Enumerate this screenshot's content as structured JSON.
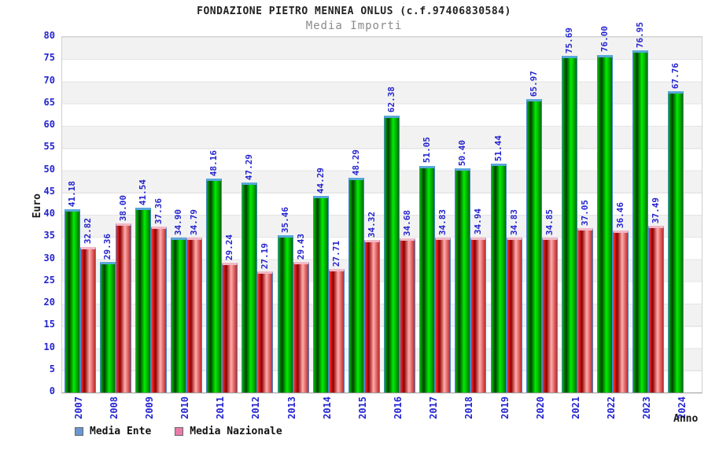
{
  "chart_data": {
    "type": "bar",
    "title": "FONDAZIONE PIETRO MENNEA ONLUS (c.f.97406830584)",
    "subtitle": "Media Importi",
    "xlabel": "Anno",
    "ylabel": "Euro",
    "ylim": [
      0,
      80
    ],
    "y_ticks": [
      0,
      5,
      10,
      15,
      20,
      25,
      30,
      35,
      40,
      45,
      50,
      55,
      60,
      65,
      70,
      75,
      80
    ],
    "grid": "horizontal-bands",
    "legend_position": "bottom-left",
    "categories": [
      "2007",
      "2008",
      "2009",
      "2010",
      "2011",
      "2012",
      "2013",
      "2014",
      "2015",
      "2016",
      "2017",
      "2018",
      "2019",
      "2020",
      "2021",
      "2022",
      "2023",
      "2024"
    ],
    "series": [
      {
        "name": "Media Ente",
        "bar_color": "#00cc00",
        "legend_swatch": "#6b96d1",
        "values": [
          41.18,
          29.36,
          41.54,
          34.9,
          48.16,
          47.29,
          35.46,
          44.29,
          48.29,
          62.38,
          51.05,
          50.4,
          51.44,
          65.97,
          75.69,
          76.0,
          76.95,
          67.76
        ]
      },
      {
        "name": "Media Nazionale",
        "bar_color": "#ee2222",
        "legend_swatch": "#e87ca6",
        "values": [
          32.82,
          38.0,
          37.36,
          34.79,
          29.24,
          27.19,
          29.43,
          27.71,
          34.32,
          34.68,
          34.83,
          34.94,
          34.83,
          34.85,
          37.05,
          36.46,
          37.49,
          null
        ]
      }
    ],
    "value_label_color": "#2424d0",
    "axis_text_color": "#2424d0",
    "value_label_decimals": 2
  }
}
